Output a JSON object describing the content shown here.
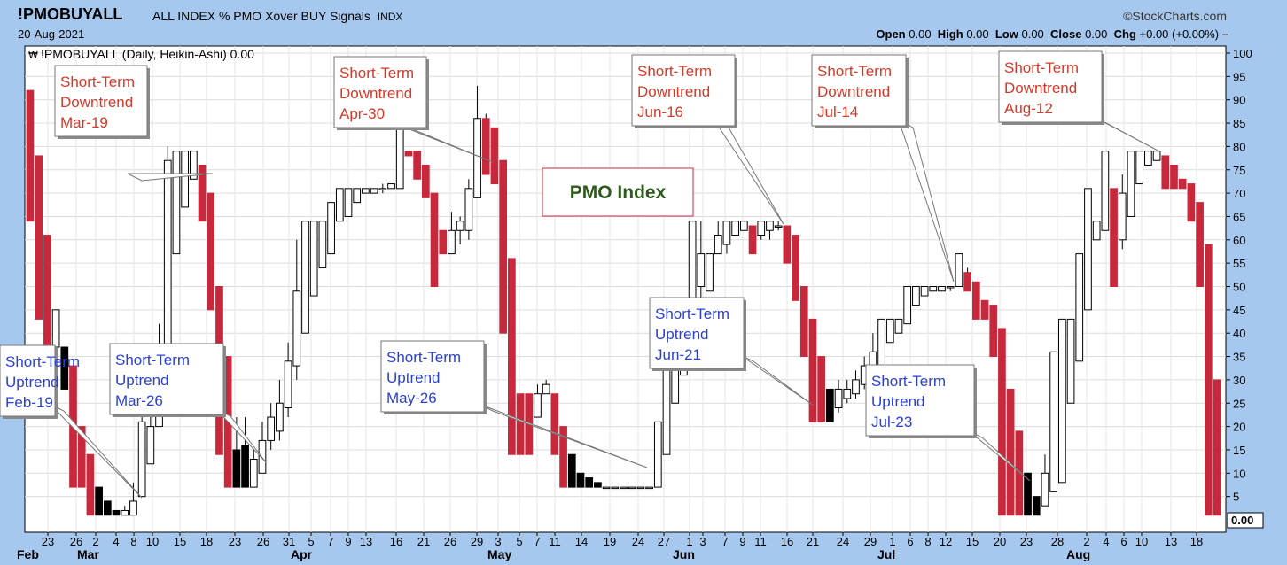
{
  "header": {
    "symbol": "!PMOBUYALL",
    "description": "ALL INDEX % PMO Xover BUY Signals",
    "exchange": "INDX",
    "date": "20-Aug-2021",
    "brand": "©StockCharts.com",
    "ohlc": {
      "open_label": "Open",
      "open": "0.00",
      "high_label": "High",
      "high": "0.00",
      "low_label": "Low",
      "low": "0.00",
      "close_label": "Close",
      "close": "0.00",
      "chg_label": "Chg",
      "chg": "+0.00 (+0.00%)"
    },
    "legend": "!PMOBUYALL (Daily, Heikin-Ashi) 0.00"
  },
  "chart_data": {
    "type": "candlestick",
    "style": "Heikin-Ashi",
    "period": "Daily",
    "ylim": [
      0,
      100
    ],
    "yticks": [
      5,
      10,
      15,
      20,
      25,
      30,
      35,
      40,
      45,
      50,
      55,
      60,
      65,
      70,
      75,
      80,
      85,
      90,
      95,
      100
    ],
    "last_value_label": "0.00",
    "x_day_labels": [
      "23",
      "26",
      "2",
      "4",
      "8",
      "10",
      "15",
      "18",
      "23",
      "26",
      "31",
      "5",
      "7",
      "9",
      "13",
      "16",
      "21",
      "26",
      "29",
      "3",
      "5",
      "7",
      "11",
      "14",
      "19",
      "24",
      "27",
      "1",
      "3",
      "7",
      "9",
      "11",
      "16",
      "21",
      "24",
      "29",
      "1",
      "6",
      "8",
      "12",
      "15",
      "20",
      "23",
      "28",
      "2",
      "4",
      "6",
      "10",
      "13",
      "18"
    ],
    "x_month_labels": [
      "Feb",
      "Mar",
      "Apr",
      "May",
      "Jun",
      "Jul",
      "Aug"
    ],
    "candles": [
      {
        "o": 92,
        "c": 64,
        "h": 92,
        "l": 64
      },
      {
        "o": 78,
        "c": 43,
        "h": 78,
        "l": 43
      },
      {
        "o": 61,
        "c": 37,
        "h": 61,
        "l": 37
      },
      {
        "o": 37,
        "c": 45,
        "h": 45,
        "l": 37
      },
      {
        "o": 37,
        "c": 28,
        "h": 37,
        "l": 28
      },
      {
        "o": 33,
        "c": 7,
        "h": 33,
        "l": 7
      },
      {
        "o": 20,
        "c": 7,
        "h": 20,
        "l": 7
      },
      {
        "o": 14,
        "c": 1,
        "h": 14,
        "l": 1
      },
      {
        "o": 7,
        "c": 1,
        "h": 7,
        "l": 1
      },
      {
        "o": 4,
        "c": 1,
        "h": 4,
        "l": 1
      },
      {
        "o": 2,
        "c": 1,
        "h": 2,
        "l": 1
      },
      {
        "o": 1,
        "c": 2,
        "h": 3,
        "l": 1
      },
      {
        "o": 1,
        "c": 4,
        "h": 8,
        "l": 1
      },
      {
        "o": 5,
        "c": 21,
        "h": 22,
        "l": 5
      },
      {
        "o": 12,
        "c": 20,
        "h": 24,
        "l": 12
      },
      {
        "o": 20,
        "c": 34,
        "h": 42,
        "l": 20
      },
      {
        "o": 34,
        "c": 77,
        "h": 80,
        "l": 34
      },
      {
        "o": 57,
        "c": 79,
        "h": 79,
        "l": 57
      },
      {
        "o": 67,
        "c": 79,
        "h": 79,
        "l": 67
      },
      {
        "o": 73,
        "c": 79,
        "h": 79,
        "l": 73
      },
      {
        "o": 76,
        "c": 64,
        "h": 76,
        "l": 64
      },
      {
        "o": 70,
        "c": 45,
        "h": 70,
        "l": 45
      },
      {
        "o": 50,
        "c": 14,
        "h": 50,
        "l": 14
      },
      {
        "o": 35,
        "c": 7,
        "h": 35,
        "l": 7
      },
      {
        "o": 15,
        "c": 7,
        "h": 22,
        "l": 7
      },
      {
        "o": 16,
        "c": 7,
        "h": 22,
        "l": 7
      },
      {
        "o": 7,
        "c": 13,
        "h": 15,
        "l": 7
      },
      {
        "o": 10,
        "c": 17,
        "h": 21,
        "l": 10
      },
      {
        "o": 17,
        "c": 22,
        "h": 25,
        "l": 15
      },
      {
        "o": 19,
        "c": 25,
        "h": 30,
        "l": 17
      },
      {
        "o": 24,
        "c": 34,
        "h": 38,
        "l": 22
      },
      {
        "o": 33,
        "c": 49,
        "h": 60,
        "l": 30
      },
      {
        "o": 40,
        "c": 64,
        "h": 64,
        "l": 40
      },
      {
        "o": 48,
        "c": 64,
        "h": 64,
        "l": 48
      },
      {
        "o": 54,
        "c": 64,
        "h": 64,
        "l": 54
      },
      {
        "o": 57,
        "c": 68,
        "h": 68,
        "l": 57
      },
      {
        "o": 64,
        "c": 71,
        "h": 71,
        "l": 64
      },
      {
        "o": 65,
        "c": 71,
        "h": 71,
        "l": 65
      },
      {
        "o": 68,
        "c": 71,
        "h": 71,
        "l": 68
      },
      {
        "o": 70,
        "c": 71,
        "h": 71,
        "l": 70
      },
      {
        "o": 70,
        "c": 71,
        "h": 71,
        "l": 70
      },
      {
        "o": 71,
        "c": 71,
        "h": 72,
        "l": 70
      },
      {
        "o": 71,
        "c": 72,
        "h": 72,
        "l": 71
      },
      {
        "o": 71,
        "c": 85,
        "h": 85,
        "l": 71
      },
      {
        "o": 79,
        "c": 78,
        "h": 79,
        "l": 78
      },
      {
        "o": 79,
        "c": 73,
        "h": 79,
        "l": 73
      },
      {
        "o": 76,
        "c": 69,
        "h": 76,
        "l": 69
      },
      {
        "o": 70,
        "c": 50,
        "h": 70,
        "l": 50
      },
      {
        "o": 62,
        "c": 57,
        "h": 62,
        "l": 57
      },
      {
        "o": 57,
        "c": 62,
        "h": 66,
        "l": 57
      },
      {
        "o": 62,
        "c": 64,
        "h": 65,
        "l": 59
      },
      {
        "o": 62,
        "c": 71,
        "h": 73,
        "l": 60
      },
      {
        "o": 69,
        "c": 86,
        "h": 93,
        "l": 69
      },
      {
        "o": 86,
        "c": 74,
        "h": 87,
        "l": 74
      },
      {
        "o": 84,
        "c": 72,
        "h": 84,
        "l": 72
      },
      {
        "o": 77,
        "c": 40,
        "h": 77,
        "l": 40
      },
      {
        "o": 56,
        "c": 14,
        "h": 56,
        "l": 14
      },
      {
        "o": 27,
        "c": 14,
        "h": 27,
        "l": 14
      },
      {
        "o": 27,
        "c": 14,
        "h": 27,
        "l": 14
      },
      {
        "o": 22,
        "c": 27,
        "h": 29,
        "l": 22
      },
      {
        "o": 27,
        "c": 29,
        "h": 30,
        "l": 27
      },
      {
        "o": 27,
        "c": 14,
        "h": 27,
        "l": 14
      },
      {
        "o": 20,
        "c": 7,
        "h": 20,
        "l": 7
      },
      {
        "o": 14,
        "c": 7,
        "h": 14,
        "l": 7
      },
      {
        "o": 10,
        "c": 7,
        "h": 10,
        "l": 7
      },
      {
        "o": 9,
        "c": 7,
        "h": 9,
        "l": 7
      },
      {
        "o": 8,
        "c": 7,
        "h": 8,
        "l": 7
      },
      {
        "o": 7,
        "c": 7,
        "h": 7,
        "l": 7
      },
      {
        "o": 7,
        "c": 7,
        "h": 7,
        "l": 7
      },
      {
        "o": 7,
        "c": 7,
        "h": 7,
        "l": 7
      },
      {
        "o": 7,
        "c": 7,
        "h": 7,
        "l": 7
      },
      {
        "o": 7,
        "c": 7,
        "h": 7,
        "l": 7
      },
      {
        "o": 7,
        "c": 7,
        "h": 7,
        "l": 7
      },
      {
        "o": 7,
        "c": 21,
        "h": 21,
        "l": 7
      },
      {
        "o": 14,
        "c": 36,
        "h": 36,
        "l": 14
      },
      {
        "o": 25,
        "c": 40,
        "h": 40,
        "l": 25
      },
      {
        "o": 31,
        "c": 40,
        "h": 40,
        "l": 31
      },
      {
        "o": 38,
        "c": 64,
        "h": 64,
        "l": 38
      },
      {
        "o": 50,
        "c": 57,
        "h": 64,
        "l": 45
      },
      {
        "o": 49,
        "c": 57,
        "h": 57,
        "l": 49
      },
      {
        "o": 57,
        "c": 61,
        "h": 64,
        "l": 57
      },
      {
        "o": 59,
        "c": 64,
        "h": 64,
        "l": 57
      },
      {
        "o": 61,
        "c": 64,
        "h": 64,
        "l": 61
      },
      {
        "o": 62,
        "c": 64,
        "h": 64,
        "l": 62
      },
      {
        "o": 63,
        "c": 57,
        "h": 63,
        "l": 57
      },
      {
        "o": 61,
        "c": 64,
        "h": 64,
        "l": 60
      },
      {
        "o": 62,
        "c": 64,
        "h": 64,
        "l": 60
      },
      {
        "o": 63,
        "c": 63,
        "h": 64,
        "l": 62
      },
      {
        "o": 63,
        "c": 55,
        "h": 63,
        "l": 55
      },
      {
        "o": 61,
        "c": 47,
        "h": 61,
        "l": 47
      },
      {
        "o": 50,
        "c": 35,
        "h": 50,
        "l": 35
      },
      {
        "o": 43,
        "c": 21,
        "h": 43,
        "l": 21
      },
      {
        "o": 35,
        "c": 21,
        "h": 35,
        "l": 21
      },
      {
        "o": 28,
        "c": 21,
        "h": 28,
        "l": 21
      },
      {
        "o": 24,
        "c": 28,
        "h": 30,
        "l": 23
      },
      {
        "o": 26,
        "c": 28,
        "h": 30,
        "l": 25
      },
      {
        "o": 27,
        "c": 30,
        "h": 32,
        "l": 26
      },
      {
        "o": 29,
        "c": 33,
        "h": 35,
        "l": 28
      },
      {
        "o": 31,
        "c": 36,
        "h": 40,
        "l": 30
      },
      {
        "o": 33,
        "c": 43,
        "h": 43,
        "l": 33
      },
      {
        "o": 38,
        "c": 43,
        "h": 43,
        "l": 38
      },
      {
        "o": 40,
        "c": 43,
        "h": 43,
        "l": 40
      },
      {
        "o": 42,
        "c": 50,
        "h": 50,
        "l": 42
      },
      {
        "o": 46,
        "c": 50,
        "h": 50,
        "l": 46
      },
      {
        "o": 48,
        "c": 50,
        "h": 50,
        "l": 48
      },
      {
        "o": 49,
        "c": 50,
        "h": 50,
        "l": 49
      },
      {
        "o": 49,
        "c": 50,
        "h": 50,
        "l": 49
      },
      {
        "o": 50,
        "c": 50,
        "h": 50,
        "l": 49
      },
      {
        "o": 50,
        "c": 57,
        "h": 57,
        "l": 50
      },
      {
        "o": 53,
        "c": 49,
        "h": 54,
        "l": 49
      },
      {
        "o": 51,
        "c": 43,
        "h": 51,
        "l": 43
      },
      {
        "o": 47,
        "c": 43,
        "h": 47,
        "l": 43
      },
      {
        "o": 46,
        "c": 35,
        "h": 46,
        "l": 35
      },
      {
        "o": 41,
        "c": 1,
        "h": 41,
        "l": 1
      },
      {
        "o": 28,
        "c": 1,
        "h": 28,
        "l": 1
      },
      {
        "o": 19,
        "c": 1,
        "h": 19,
        "l": 1
      },
      {
        "o": 10,
        "c": 1,
        "h": 10,
        "l": 1
      },
      {
        "o": 5,
        "c": 1,
        "h": 5,
        "l": 1
      },
      {
        "o": 3,
        "c": 10,
        "h": 14,
        "l": 3
      },
      {
        "o": 6,
        "c": 36,
        "h": 36,
        "l": 6
      },
      {
        "o": 8,
        "c": 43,
        "h": 43,
        "l": 8
      },
      {
        "o": 25,
        "c": 43,
        "h": 43,
        "l": 25
      },
      {
        "o": 34,
        "c": 57,
        "h": 57,
        "l": 34
      },
      {
        "o": 45,
        "c": 71,
        "h": 71,
        "l": 45
      },
      {
        "o": 60,
        "c": 64,
        "h": 64,
        "l": 60
      },
      {
        "o": 62,
        "c": 79,
        "h": 79,
        "l": 62
      },
      {
        "o": 71,
        "c": 50,
        "h": 71,
        "l": 50
      },
      {
        "o": 60,
        "c": 70,
        "h": 74,
        "l": 58
      },
      {
        "o": 65,
        "c": 79,
        "h": 79,
        "l": 65
      },
      {
        "o": 72,
        "c": 79,
        "h": 79,
        "l": 72
      },
      {
        "o": 76,
        "c": 79,
        "h": 79,
        "l": 76
      },
      {
        "o": 77,
        "c": 79,
        "h": 79,
        "l": 77
      },
      {
        "o": 78,
        "c": 71,
        "h": 78,
        "l": 71
      },
      {
        "o": 76,
        "c": 71,
        "h": 76,
        "l": 71
      },
      {
        "o": 73,
        "c": 71,
        "h": 73,
        "l": 71
      },
      {
        "o": 72,
        "c": 64,
        "h": 72,
        "l": 64
      },
      {
        "o": 68,
        "c": 50,
        "h": 68,
        "l": 50
      },
      {
        "o": 59,
        "c": 1,
        "h": 59,
        "l": 1
      },
      {
        "o": 30,
        "c": 1,
        "h": 30,
        "l": 1
      }
    ],
    "annotations": [
      {
        "text": "PMO Index",
        "kind": "title-box"
      },
      {
        "text": [
          "Short-Term",
          "Downtrend",
          "Mar-19"
        ],
        "kind": "down"
      },
      {
        "text": [
          "Short-Term",
          "Downtrend",
          "Apr-30"
        ],
        "kind": "down"
      },
      {
        "text": [
          "Short-Term",
          "Downtrend",
          "Jun-16"
        ],
        "kind": "down"
      },
      {
        "text": [
          "Short-Term",
          "Downtrend",
          "Jul-14"
        ],
        "kind": "down"
      },
      {
        "text": [
          "Short-Term",
          "Downtrend",
          "Aug-12"
        ],
        "kind": "down"
      },
      {
        "text": [
          "Short-Term",
          "Uptrend",
          "Feb-19"
        ],
        "kind": "up"
      },
      {
        "text": [
          "Short-Term",
          "Uptrend",
          "Mar-26"
        ],
        "kind": "up"
      },
      {
        "text": [
          "Short-Term",
          "Uptrend",
          "May-26"
        ],
        "kind": "up"
      },
      {
        "text": [
          "Short-Term",
          "Uptrend",
          "Jun-21"
        ],
        "kind": "up"
      },
      {
        "text": [
          "Short-Term",
          "Uptrend",
          "Jul-23"
        ],
        "kind": "up"
      }
    ],
    "colors": {
      "down": "#c8283c",
      "up_text": "#2a3fd4",
      "down_text": "#d23a2a",
      "title_text": "#2f5a1e",
      "background": "#a6c8ee"
    }
  }
}
